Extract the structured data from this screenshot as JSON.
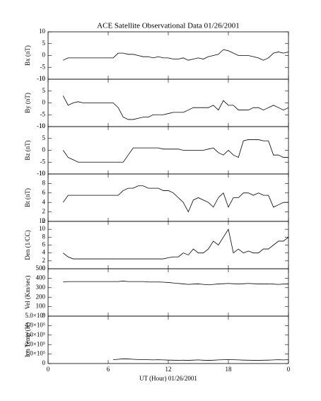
{
  "chart_data": [
    {
      "type": "line",
      "title": "ACE Satellite Observational Data   01/26/2001",
      "ylabel": "Bx (nT)",
      "color": "#000000",
      "xlim": [
        0,
        24
      ],
      "ylim": [
        -10,
        10
      ],
      "yticks": [
        -10,
        -5,
        0,
        5,
        10
      ],
      "x": [
        0,
        0.5,
        1,
        1.5,
        2,
        2.5,
        3,
        3.5,
        4,
        4.5,
        5,
        5.5,
        6,
        6.5,
        7,
        7.5,
        8,
        8.5,
        9,
        9.5,
        10,
        10.5,
        11,
        11.5,
        12,
        12.5,
        13,
        13.5,
        14,
        14.5,
        15,
        15.5,
        16,
        16.5,
        17,
        17.5,
        18,
        18.5,
        19,
        19.5,
        20,
        20.5,
        21,
        21.5,
        22,
        22.5,
        23,
        23.5,
        24
      ],
      "values": [
        null,
        null,
        null,
        -2,
        -1,
        -1,
        -1,
        -1,
        -1,
        -1,
        -1,
        -1,
        -1,
        -1,
        1,
        1,
        0.5,
        0.5,
        0,
        -0.5,
        -0.5,
        -1,
        -0.5,
        -1,
        -1,
        -1.5,
        -1.5,
        -1,
        -2,
        -1.5,
        -1,
        -1.5,
        -0.5,
        0,
        0.5,
        2.5,
        2,
        1,
        0,
        0,
        0,
        -0.5,
        -1,
        -2,
        -1,
        1,
        1.5,
        1,
        1.5
      ]
    },
    {
      "type": "line",
      "ylabel": "By (nT)",
      "color": "#000000",
      "xlim": [
        0,
        24
      ],
      "ylim": [
        -10,
        10
      ],
      "yticks": [
        -10,
        -5,
        0,
        5,
        10
      ],
      "x": [
        0,
        0.5,
        1,
        1.5,
        2,
        2.5,
        3,
        3.5,
        4,
        4.5,
        5,
        5.5,
        6,
        6.5,
        7,
        7.5,
        8,
        8.5,
        9,
        9.5,
        10,
        10.5,
        11,
        11.5,
        12,
        12.5,
        13,
        13.5,
        14,
        14.5,
        15,
        15.5,
        16,
        16.5,
        17,
        17.5,
        18,
        18.5,
        19,
        19.5,
        20,
        20.5,
        21,
        21.5,
        22,
        22.5,
        23,
        23.5,
        24
      ],
      "values": [
        null,
        null,
        null,
        3,
        -1,
        0,
        0.5,
        0,
        0,
        0,
        0,
        0,
        0,
        0,
        -2,
        -6,
        -7,
        -7,
        -6.5,
        -6,
        -6,
        -5,
        -5,
        -5,
        -4.5,
        -4,
        -4,
        -4,
        -3,
        -2,
        -2,
        -2,
        -2,
        -1,
        -3,
        1,
        -1,
        -1,
        -3,
        -3,
        -3,
        -2,
        -2,
        -3,
        -2,
        -1,
        -2,
        -3,
        -2
      ]
    },
    {
      "type": "line",
      "ylabel": "Bz (nT)",
      "color": "#000000",
      "xlim": [
        0,
        24
      ],
      "ylim": [
        -10,
        10
      ],
      "yticks": [
        -10,
        -5,
        0,
        5,
        10
      ],
      "x": [
        0,
        0.5,
        1,
        1.5,
        2,
        2.5,
        3,
        3.5,
        4,
        4.5,
        5,
        5.5,
        6,
        6.5,
        7,
        7.5,
        8,
        8.5,
        9,
        9.5,
        10,
        10.5,
        11,
        11.5,
        12,
        12.5,
        13,
        13.5,
        14,
        14.5,
        15,
        15.5,
        16,
        16.5,
        17,
        17.5,
        18,
        18.5,
        19,
        19.5,
        20,
        20.5,
        21,
        21.5,
        22,
        22.5,
        23,
        23.5,
        24
      ],
      "values": [
        null,
        null,
        null,
        0,
        -3,
        -4,
        -5,
        -5,
        -5,
        -5,
        -5,
        -5,
        -5,
        -5,
        -5,
        -5,
        -2,
        1,
        1,
        1,
        1,
        1,
        1,
        0.5,
        0.5,
        0.5,
        0.5,
        0,
        0,
        0,
        0,
        0,
        0.5,
        1,
        -1,
        -2,
        0,
        -2,
        -3,
        4,
        4.5,
        4.5,
        4.5,
        4,
        4,
        -2,
        -2,
        -3,
        -3
      ]
    },
    {
      "type": "line",
      "ylabel": "Bt (nT)",
      "color": "#000000",
      "xlim": [
        0,
        24
      ],
      "ylim": [
        0,
        10
      ],
      "yticks": [
        0,
        2,
        4,
        6,
        8,
        10
      ],
      "x": [
        0,
        0.5,
        1,
        1.5,
        2,
        2.5,
        3,
        3.5,
        4,
        4.5,
        5,
        5.5,
        6,
        6.5,
        7,
        7.5,
        8,
        8.5,
        9,
        9.5,
        10,
        10.5,
        11,
        11.5,
        12,
        12.5,
        13,
        13.5,
        14,
        14.5,
        15,
        15.5,
        16,
        16.5,
        17,
        17.5,
        18,
        18.5,
        19,
        19.5,
        20,
        20.5,
        21,
        21.5,
        22,
        22.5,
        23,
        23.5,
        24
      ],
      "values": [
        null,
        null,
        null,
        4,
        5.5,
        5.5,
        5.5,
        5.5,
        5.5,
        5.5,
        5.5,
        5.5,
        5.5,
        5.5,
        5.5,
        6.5,
        7,
        7,
        7.5,
        7.5,
        7,
        7,
        7,
        6.5,
        6.5,
        6,
        5,
        4,
        2,
        4.5,
        5,
        4.5,
        4,
        3,
        5,
        6,
        3,
        5,
        5,
        6,
        6,
        5.5,
        6,
        5.5,
        5.5,
        3,
        3.5,
        4,
        4
      ]
    },
    {
      "type": "line",
      "ylabel": "Den (1/CC)",
      "color": "#000000",
      "xlim": [
        0,
        24
      ],
      "ylim": [
        0,
        12
      ],
      "yticks": [
        0,
        2,
        4,
        6,
        8,
        10,
        12
      ],
      "x": [
        0,
        0.5,
        1,
        1.5,
        2,
        2.5,
        3,
        3.5,
        4,
        4.5,
        5,
        5.5,
        6,
        6.5,
        7,
        7.5,
        8,
        8.5,
        9,
        9.5,
        10,
        10.5,
        11,
        11.5,
        12,
        12.5,
        13,
        13.5,
        14,
        14.5,
        15,
        15.5,
        16,
        16.5,
        17,
        17.5,
        18,
        18.5,
        19,
        19.5,
        20,
        20.5,
        21,
        21.5,
        22,
        22.5,
        23,
        23.5,
        24
      ],
      "values": [
        null,
        null,
        null,
        4,
        3,
        2.5,
        2.5,
        2.5,
        2.5,
        2.5,
        2.5,
        2.5,
        2.5,
        2.5,
        2.5,
        2.5,
        2.5,
        2.5,
        2.5,
        2.5,
        2.5,
        2.5,
        2.5,
        2.5,
        2.8,
        3,
        3,
        4,
        3.5,
        5,
        4,
        4,
        5,
        7,
        6,
        8,
        10,
        4,
        5,
        4,
        4.5,
        4,
        4,
        5,
        5,
        6,
        7,
        7,
        8
      ]
    },
    {
      "type": "line",
      "ylabel": "Vel (Km/sec)",
      "color": "#000000",
      "xlim": [
        0,
        24
      ],
      "ylim": [
        0,
        500
      ],
      "yticks": [
        0,
        100,
        200,
        300,
        400,
        500
      ],
      "x": [
        0,
        0.5,
        1,
        1.5,
        2,
        2.5,
        3,
        3.5,
        4,
        4.5,
        5,
        5.5,
        6,
        6.5,
        7,
        7.5,
        8,
        8.5,
        9,
        9.5,
        10,
        10.5,
        11,
        11.5,
        12,
        12.5,
        13,
        13.5,
        14,
        14.5,
        15,
        15.5,
        16,
        16.5,
        17,
        17.5,
        18,
        18.5,
        19,
        19.5,
        20,
        20.5,
        21,
        21.5,
        22,
        22.5,
        23,
        23.5,
        24
      ],
      "values": [
        null,
        null,
        null,
        360,
        365,
        365,
        365,
        365,
        365,
        365,
        365,
        365,
        365,
        365,
        365,
        370,
        365,
        365,
        365,
        365,
        360,
        360,
        360,
        358,
        355,
        350,
        345,
        340,
        335,
        338,
        340,
        335,
        330,
        335,
        340,
        342,
        345,
        342,
        340,
        342,
        345,
        342,
        340,
        340,
        340,
        338,
        335,
        338,
        340
      ]
    },
    {
      "type": "line",
      "ylabel": "Ion Temp (K)",
      "xlabel": "UT (Hour)  01/26/2001",
      "color": "#000000",
      "xlim": [
        0,
        24
      ],
      "ylim": [
        0,
        500000
      ],
      "yticks": [
        0,
        {
          "value": 100000,
          "label": "1.0×10⁵"
        },
        {
          "value": 200000,
          "label": "2.0×10⁵"
        },
        {
          "value": 300000,
          "label": "3.0×10⁵"
        },
        {
          "value": 400000,
          "label": "4.0×10⁵"
        },
        {
          "value": 500000,
          "label": "5.0×10⁵"
        }
      ],
      "xticks": [
        0,
        6,
        12,
        18,
        {
          "value": 24,
          "label": "0"
        }
      ],
      "x": [
        0,
        0.5,
        1,
        1.5,
        2,
        2.5,
        3,
        3.5,
        4,
        4.5,
        5,
        5.5,
        6,
        6.5,
        7,
        7.5,
        8,
        8.5,
        9,
        9.5,
        10,
        10.5,
        11,
        11.5,
        12,
        12.5,
        13,
        13.5,
        14,
        14.5,
        15,
        15.5,
        16,
        16.5,
        17,
        17.5,
        18,
        18.5,
        19,
        19.5,
        20,
        20.5,
        21,
        21.5,
        22,
        22.5,
        23,
        23.5,
        24
      ],
      "values": [
        null,
        null,
        null,
        null,
        null,
        null,
        null,
        null,
        null,
        null,
        null,
        null,
        null,
        40000,
        45000,
        50000,
        48000,
        45000,
        42000,
        40000,
        40000,
        38000,
        40000,
        38000,
        36000,
        35000,
        34000,
        35000,
        33000,
        36000,
        38000,
        35000,
        33000,
        35000,
        38000,
        40000,
        42000,
        40000,
        38000,
        36000,
        35000,
        34000,
        33000,
        35000,
        36000,
        38000,
        40000,
        38000,
        40000
      ]
    }
  ]
}
